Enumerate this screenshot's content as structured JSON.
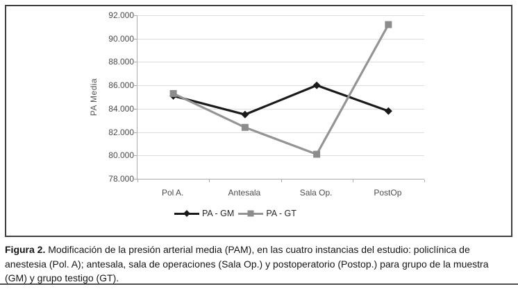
{
  "figure": {
    "caption_label": "Figura 2.",
    "caption_text": " Modificación de la presión arterial media (PAM), en las cuatro instancias del estudio: policlínica de anestesia (Pol. A); antesala, sala de operaciones (Sala Op.) y postoperatorio (Postop.) para grupo de la muestra (GM) y grupo testigo (GT)."
  },
  "chart_data": {
    "type": "line",
    "title": "",
    "xlabel": "",
    "ylabel": "PA Media",
    "categories": [
      "Pol A.",
      "Antesala",
      "Sala Op.",
      "PostOp"
    ],
    "series": [
      {
        "name": "PA - GM",
        "values": [
          85.1,
          83.5,
          86.0,
          83.8
        ],
        "color": "#1a1a1a",
        "marker": "diamond"
      },
      {
        "name": "PA - GT",
        "values": [
          85.3,
          82.4,
          80.1,
          91.2
        ],
        "color": "#949494",
        "marker": "square",
        "marker_color": "#8c8c8c"
      }
    ],
    "ylim": [
      78,
      92
    ],
    "ytick_step": 2,
    "ytick_labels": [
      "92.000",
      "90.000",
      "88.000",
      "86.000",
      "84.000",
      "82.000",
      "80.000",
      "78.000"
    ],
    "grid": "horizontal",
    "gridline_color": "#dcdcdc",
    "legend_position": "bottom"
  }
}
